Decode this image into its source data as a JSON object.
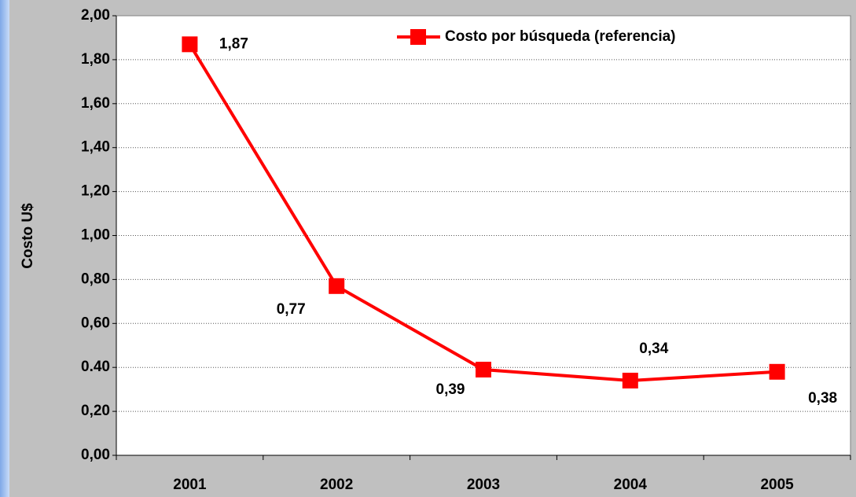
{
  "chart_data": {
    "type": "line",
    "y_label": "Costo U$",
    "categories": [
      "2001",
      "2002",
      "2003",
      "2004",
      "2005"
    ],
    "series": [
      {
        "name": "Costo por búsqueda (referencia)",
        "color": "#ff0000",
        "values": [
          1.87,
          0.77,
          0.39,
          0.34,
          0.38
        ],
        "value_labels": [
          "1,87",
          "0,77",
          "0,39",
          "0,34",
          "0,38"
        ]
      }
    ],
    "ylim": [
      0,
      2
    ],
    "yticks": [
      {
        "value": 0,
        "label": "0,00"
      },
      {
        "value": 0.2,
        "label": "0,20"
      },
      {
        "value": 0.4,
        "label": "0.40"
      },
      {
        "value": 0.6,
        "label": "0,60"
      },
      {
        "value": 0.8,
        "label": "0,80"
      },
      {
        "value": 1,
        "label": "1,00"
      },
      {
        "value": 1.2,
        "label": "1,20"
      },
      {
        "value": 1.4,
        "label": "1,40"
      },
      {
        "value": 1.6,
        "label": "1,60"
      },
      {
        "value": 1.8,
        "label": "1,80"
      },
      {
        "value": 2,
        "label": "2,00"
      }
    ],
    "grid": true,
    "legend": "top"
  }
}
